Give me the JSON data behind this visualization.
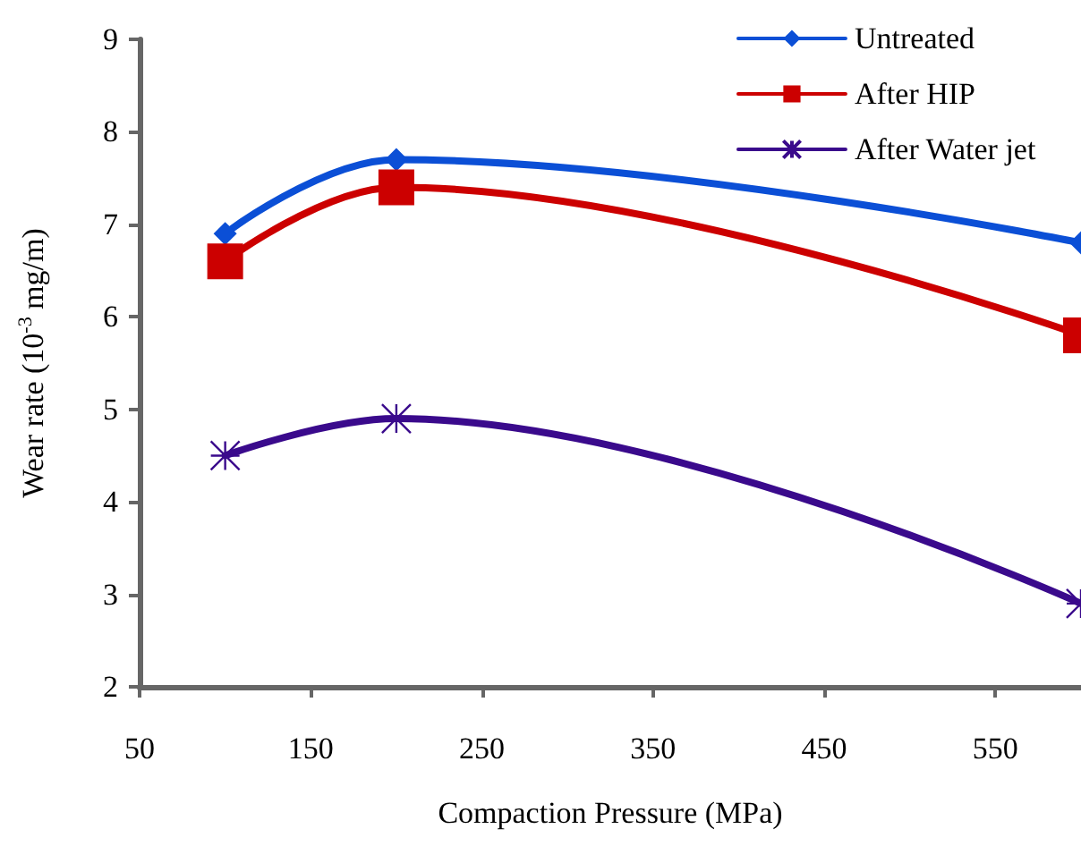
{
  "chart_data": {
    "type": "line",
    "xlabel": "Compaction Pressure (MPa)",
    "ylabel": "Wear rate (10$^{-3}$ mg/m)",
    "x": [
      100,
      200,
      600
    ],
    "series": [
      {
        "name": "Untreated",
        "color": "#0b4fd6",
        "marker": "diamond",
        "values": [
          6.9,
          7.7,
          6.8
        ]
      },
      {
        "name": "After HIP",
        "color": "#cc0000",
        "marker": "square",
        "values": [
          6.6,
          7.4,
          5.8
        ]
      },
      {
        "name": "After Water jet",
        "color": "#3a0a8c",
        "marker": "cross",
        "values": [
          4.5,
          4.9,
          2.9
        ]
      }
    ],
    "xlim": [
      50,
      600
    ],
    "xticks": [
      50,
      150,
      250,
      350,
      450,
      550
    ],
    "ylim": [
      2,
      9
    ],
    "yticks": [
      2,
      3,
      4,
      5,
      6,
      7,
      8,
      9
    ],
    "grid": false,
    "legend": "top right",
    "line_style": "solid"
  }
}
